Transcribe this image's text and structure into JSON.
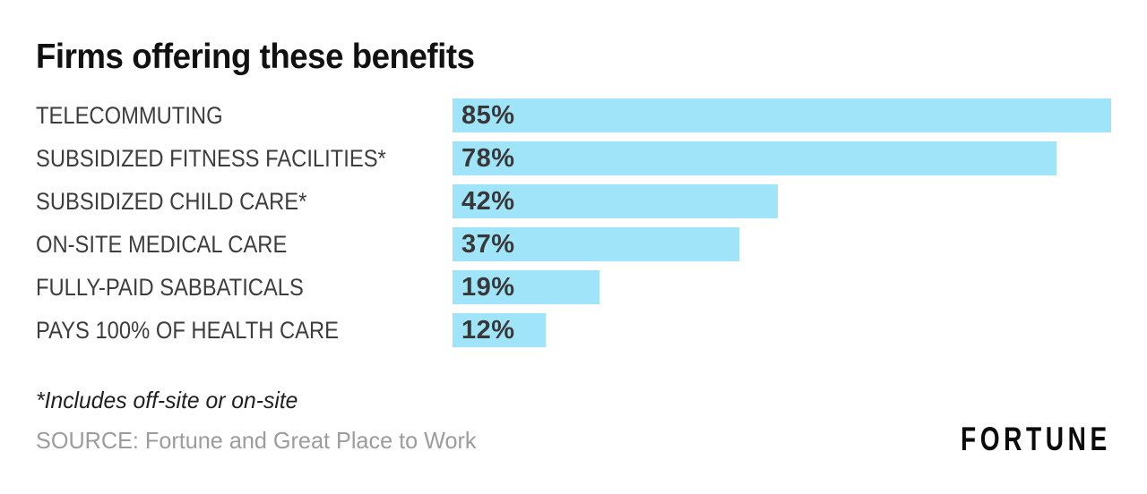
{
  "page": {
    "background": "#ffffff"
  },
  "chart_data": {
    "type": "bar",
    "orientation": "horizontal",
    "title": "Firms offering these benefits",
    "categories": [
      "TELECOMMUTING",
      "SUBSIDIZED FITNESS FACILITIES*",
      "SUBSIDIZED CHILD CARE*",
      "ON-SITE MEDICAL CARE",
      "FULLY-PAID SABBATICALS",
      "PAYS 100% OF HEALTH CARE"
    ],
    "values": [
      85,
      78,
      42,
      37,
      19,
      12
    ],
    "value_labels": [
      "85%",
      "78%",
      "42%",
      "37%",
      "19%",
      "12%"
    ],
    "unit": "%",
    "bar_scale_max": 85,
    "bar_color": "#A0E4FA",
    "label_color": "#3D3D3D",
    "value_label_color": "#383838",
    "grid": false,
    "legend": false,
    "axes_shown": false,
    "footnote": "*Includes off-site or on-site",
    "source": "SOURCE: Fortune and Great Place to Work",
    "brand_logo_text": "FORTUNE"
  }
}
